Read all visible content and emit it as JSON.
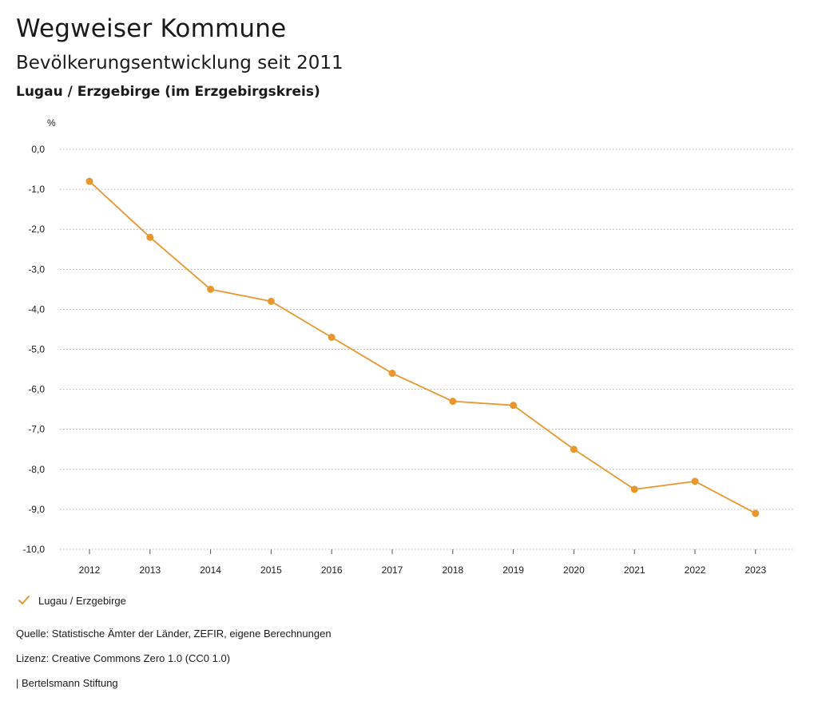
{
  "header": {
    "title": "Wegweiser Kommune",
    "subtitle": "Bevölkerungsentwicklung seit 2011",
    "region": "Lugau / Erzgebirge (im Erzgebirgskreis)"
  },
  "chart_data": {
    "type": "line",
    "title": "Bevölkerungsentwicklung seit 2011",
    "ylabel": "%",
    "xlabel": "",
    "ylim": [
      -10,
      0
    ],
    "y_ticks": [
      0,
      -1,
      -2,
      -3,
      -4,
      -5,
      -6,
      -7,
      -8,
      -9,
      -10
    ],
    "y_tick_labels": [
      "0,0",
      "-1,0",
      "-2,0",
      "-3,0",
      "-4,0",
      "-5,0",
      "-6,0",
      "-7,0",
      "-8,0",
      "-9,0",
      "-10,0"
    ],
    "x": [
      "2012",
      "2013",
      "2014",
      "2015",
      "2016",
      "2017",
      "2018",
      "2019",
      "2020",
      "2021",
      "2022",
      "2023"
    ],
    "series": [
      {
        "name": "Lugau / Erzgebirge",
        "color": "#e8962e",
        "values": [
          -0.8,
          -2.2,
          -3.5,
          -3.8,
          -4.7,
          -5.6,
          -6.3,
          -6.4,
          -7.5,
          -8.5,
          -8.3,
          -9.1
        ]
      }
    ],
    "grid": true,
    "legend": "bottom-left"
  },
  "legend": {
    "label": "Lugau / Erzgebirge",
    "icon": "check-icon"
  },
  "footer": {
    "source": "Quelle: Statistische Ämter der Länder, ZEFIR, eigene Berechnungen",
    "license": "Lizenz: Creative Commons Zero 1.0 (CC0 1.0)",
    "publisher": "| Bertelsmann Stiftung"
  }
}
